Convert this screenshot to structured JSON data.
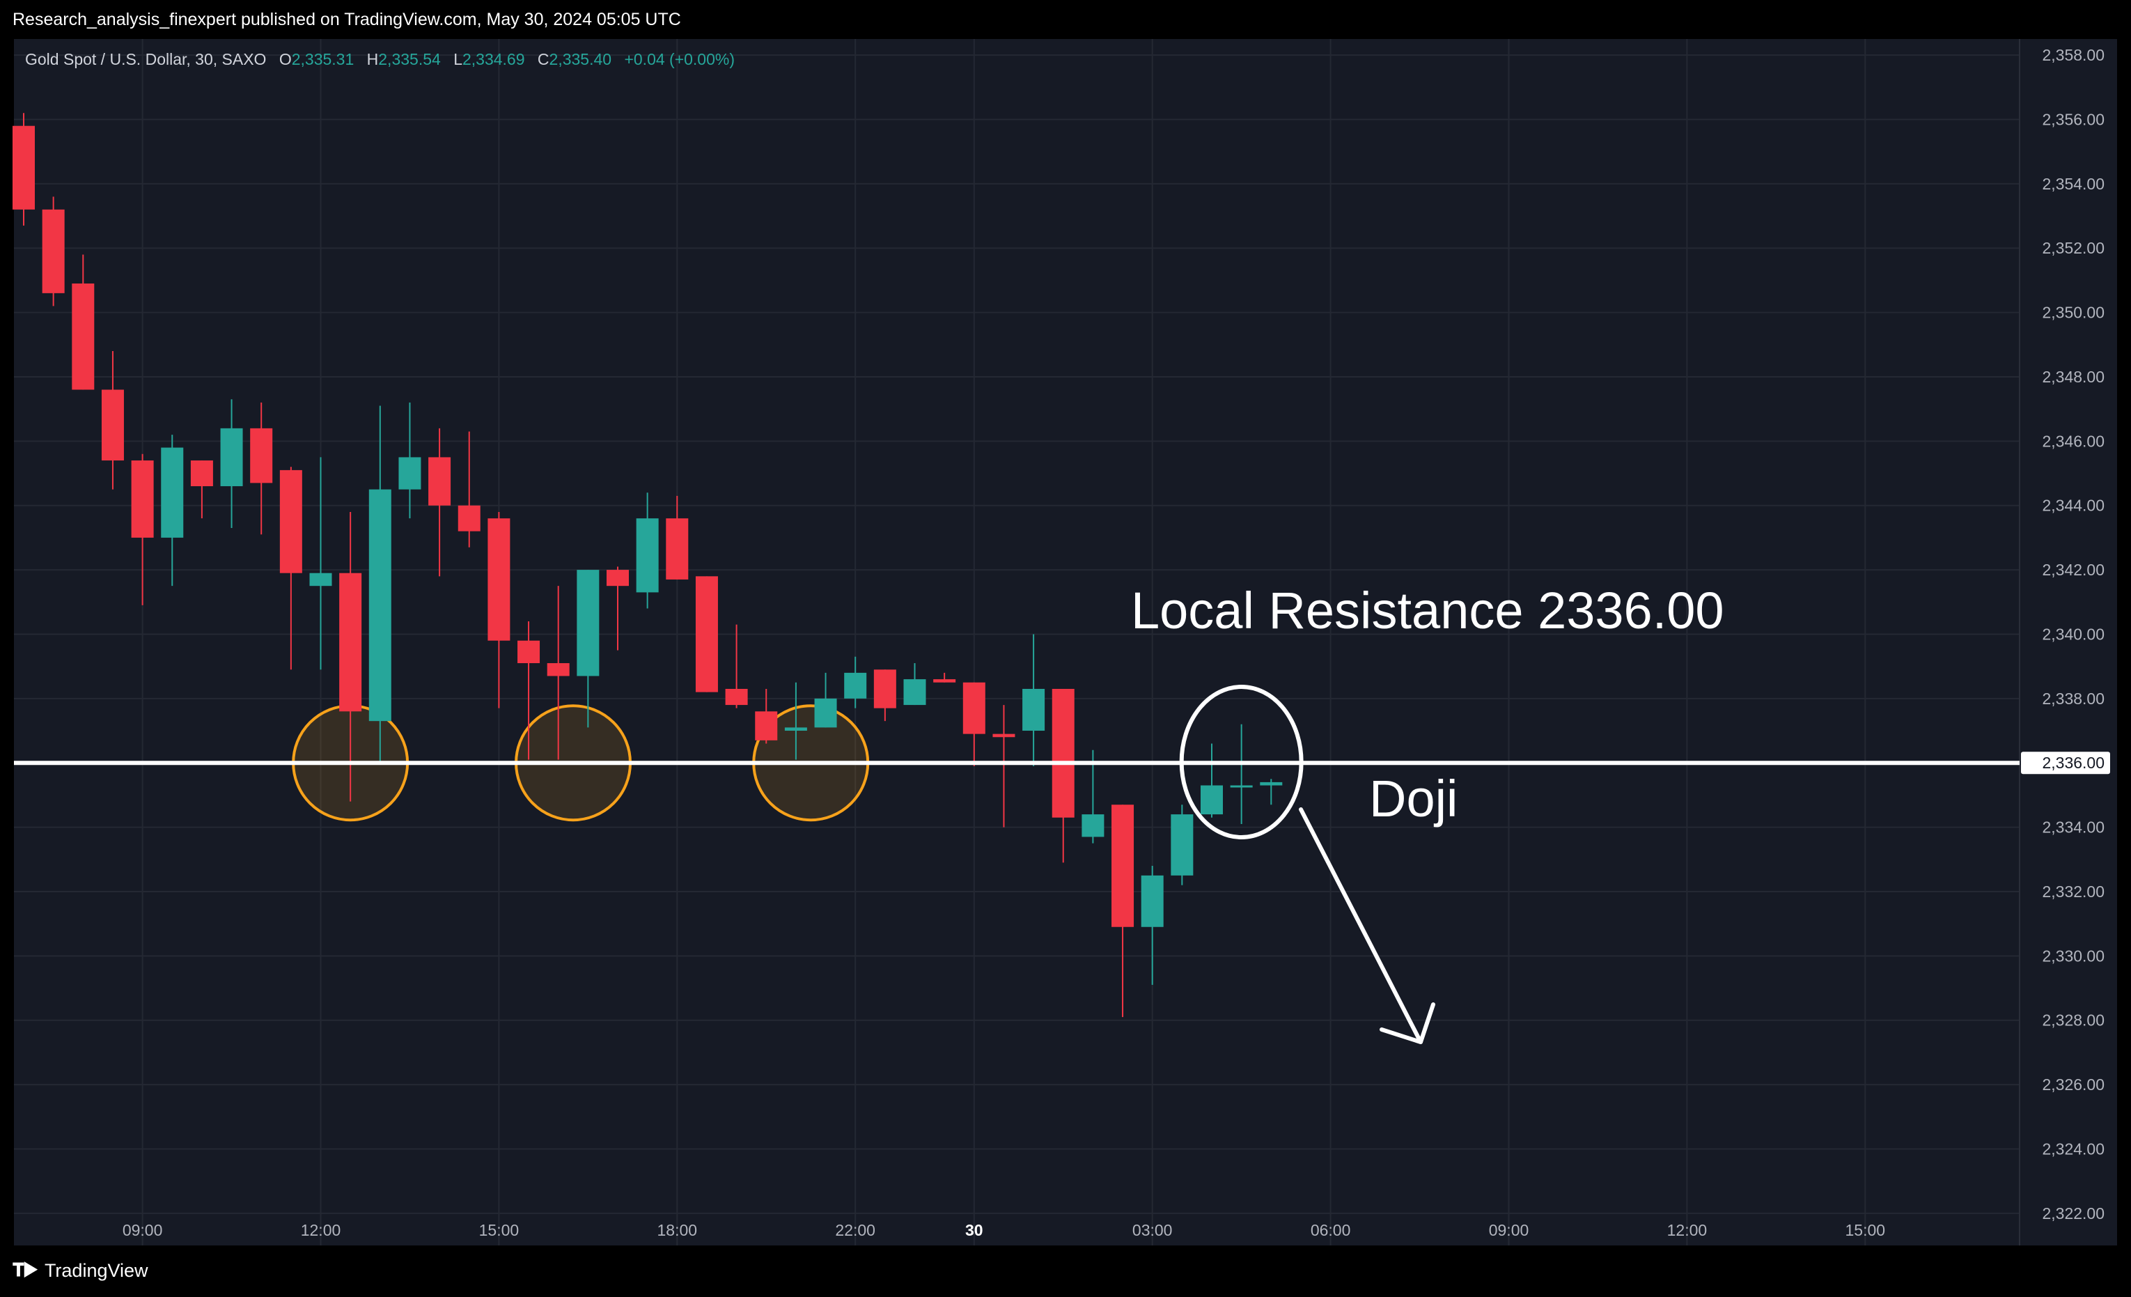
{
  "header": {
    "publisher_text": "Research_analysis_finexpert published on TradingView.com, May 30, 2024 05:05 UTC"
  },
  "legend": {
    "symbol": "Gold Spot / U.S. Dollar, 30, SAXO",
    "o_label": "O",
    "o_value": "2,335.31",
    "h_label": "H",
    "h_value": "2,335.54",
    "l_label": "L",
    "l_value": "2,334.69",
    "c_label": "C",
    "c_value": "2,335.40",
    "change": "+0.04 (+0.00%)"
  },
  "footer": {
    "brand": "TradingView",
    "logo_icon": "tradingview-logo-icon"
  },
  "colors": {
    "up": "#26a69a",
    "down": "#f23645",
    "background": "#161a25",
    "grid": "#242833",
    "axis_text": "#b2b5be",
    "level_line": "#ffffff",
    "circle_orange": "#f7a21b"
  },
  "chart_data": {
    "type": "candlestick",
    "interval": "30",
    "ylim": [
      2321.0,
      2358.5
    ],
    "y_ticks": [
      "2,358.00",
      "2,356.00",
      "2,354.00",
      "2,352.00",
      "2,350.00",
      "2,348.00",
      "2,346.00",
      "2,344.00",
      "2,342.00",
      "2,340.00",
      "2,338.00",
      "2,336.00",
      "2,334.00",
      "2,332.00",
      "2,330.00",
      "2,328.00",
      "2,326.00",
      "2,324.00",
      "2,322.00"
    ],
    "y_tick_values": [
      2358,
      2356,
      2354,
      2352,
      2350,
      2348,
      2346,
      2344,
      2342,
      2340,
      2338,
      2336,
      2334,
      2332,
      2330,
      2328,
      2326,
      2324,
      2322
    ],
    "x_ticks": [
      {
        "label": "09:00",
        "bar": 4,
        "bold": false
      },
      {
        "label": "12:00",
        "bar": 10,
        "bold": false
      },
      {
        "label": "15:00",
        "bar": 16,
        "bold": false
      },
      {
        "label": "18:00",
        "bar": 22,
        "bold": false
      },
      {
        "label": "22:00",
        "bar": 28,
        "bold": false
      },
      {
        "label": "30",
        "bar": 32,
        "bold": true
      },
      {
        "label": "03:00",
        "bar": 38,
        "bold": false
      },
      {
        "label": "06:00",
        "bar": 44,
        "bold": false
      },
      {
        "label": "09:00",
        "bar": 50,
        "bold": false
      },
      {
        "label": "12:00",
        "bar": 56,
        "bold": false
      },
      {
        "label": "15:00",
        "bar": 62,
        "bold": false
      }
    ],
    "candles": [
      {
        "o": 2355.8,
        "h": 2356.2,
        "l": 2352.7,
        "c": 2353.2
      },
      {
        "o": 2353.2,
        "h": 2353.6,
        "l": 2350.2,
        "c": 2350.6
      },
      {
        "o": 2350.9,
        "h": 2351.8,
        "l": 2347.6,
        "c": 2347.6
      },
      {
        "o": 2347.6,
        "h": 2348.8,
        "l": 2344.5,
        "c": 2345.4
      },
      {
        "o": 2345.4,
        "h": 2345.6,
        "l": 2340.9,
        "c": 2343.0
      },
      {
        "o": 2343.0,
        "h": 2346.2,
        "l": 2341.5,
        "c": 2345.8
      },
      {
        "o": 2345.4,
        "h": 2345.4,
        "l": 2343.6,
        "c": 2344.6
      },
      {
        "o": 2344.6,
        "h": 2347.3,
        "l": 2343.3,
        "c": 2346.4
      },
      {
        "o": 2346.4,
        "h": 2347.2,
        "l": 2343.1,
        "c": 2344.7
      },
      {
        "o": 2345.1,
        "h": 2345.2,
        "l": 2338.9,
        "c": 2341.9
      },
      {
        "o": 2341.5,
        "h": 2345.5,
        "l": 2338.9,
        "c": 2341.9
      },
      {
        "o": 2341.9,
        "h": 2343.8,
        "l": 2334.8,
        "c": 2337.6
      },
      {
        "o": 2337.3,
        "h": 2347.1,
        "l": 2336.0,
        "c": 2344.5
      },
      {
        "o": 2344.5,
        "h": 2347.2,
        "l": 2343.6,
        "c": 2345.5
      },
      {
        "o": 2345.5,
        "h": 2346.4,
        "l": 2341.8,
        "c": 2344.0
      },
      {
        "o": 2344.0,
        "h": 2346.3,
        "l": 2342.7,
        "c": 2343.2
      },
      {
        "o": 2343.6,
        "h": 2343.8,
        "l": 2337.7,
        "c": 2339.8
      },
      {
        "o": 2339.8,
        "h": 2340.4,
        "l": 2336.1,
        "c": 2339.1
      },
      {
        "o": 2339.1,
        "h": 2341.5,
        "l": 2336.1,
        "c": 2338.7
      },
      {
        "o": 2338.7,
        "h": 2342.0,
        "l": 2337.1,
        "c": 2342.0
      },
      {
        "o": 2342.0,
        "h": 2342.1,
        "l": 2339.5,
        "c": 2341.5
      },
      {
        "o": 2341.3,
        "h": 2344.4,
        "l": 2340.8,
        "c": 2343.6
      },
      {
        "o": 2343.6,
        "h": 2344.3,
        "l": 2341.7,
        "c": 2341.7
      },
      {
        "o": 2341.8,
        "h": 2341.8,
        "l": 2338.2,
        "c": 2338.2
      },
      {
        "o": 2338.3,
        "h": 2340.3,
        "l": 2337.7,
        "c": 2337.8
      },
      {
        "o": 2337.6,
        "h": 2338.3,
        "l": 2336.6,
        "c": 2336.7
      },
      {
        "o": 2337.0,
        "h": 2338.5,
        "l": 2336.1,
        "c": 2337.1
      },
      {
        "o": 2337.1,
        "h": 2338.8,
        "l": 2337.1,
        "c": 2338.0
      },
      {
        "o": 2338.0,
        "h": 2339.3,
        "l": 2337.7,
        "c": 2338.8
      },
      {
        "o": 2338.9,
        "h": 2338.9,
        "l": 2337.3,
        "c": 2337.7
      },
      {
        "o": 2337.8,
        "h": 2339.1,
        "l": 2337.8,
        "c": 2338.6
      },
      {
        "o": 2338.6,
        "h": 2338.8,
        "l": 2338.5,
        "c": 2338.5
      },
      {
        "o": 2338.5,
        "h": 2338.5,
        "l": 2335.9,
        "c": 2336.9
      },
      {
        "o": 2336.9,
        "h": 2337.8,
        "l": 2334.0,
        "c": 2336.8
      },
      {
        "o": 2337.0,
        "h": 2340.0,
        "l": 2335.9,
        "c": 2338.3
      },
      {
        "o": 2338.3,
        "h": 2338.3,
        "l": 2332.9,
        "c": 2334.3
      },
      {
        "o": 2333.7,
        "h": 2336.4,
        "l": 2333.5,
        "c": 2334.4
      },
      {
        "o": 2334.7,
        "h": 2334.7,
        "l": 2328.1,
        "c": 2330.9
      },
      {
        "o": 2330.9,
        "h": 2332.8,
        "l": 2329.1,
        "c": 2332.5
      },
      {
        "o": 2332.5,
        "h": 2334.7,
        "l": 2332.2,
        "c": 2334.4
      },
      {
        "o": 2334.4,
        "h": 2336.6,
        "l": 2334.3,
        "c": 2335.3
      },
      {
        "o": 2335.3,
        "h": 2337.2,
        "l": 2334.1,
        "c": 2335.3
      },
      {
        "o": 2335.3,
        "h": 2335.5,
        "l": 2334.7,
        "c": 2335.4
      }
    ],
    "level": {
      "value": 2336.0,
      "label": "2,336.00"
    },
    "annotations": {
      "resistance_text": "Local Resistance 2336.00",
      "doji_text": "Doji",
      "orange_circle_bars": [
        11,
        18.5,
        26.5
      ],
      "white_circle_bar": 41
    }
  }
}
